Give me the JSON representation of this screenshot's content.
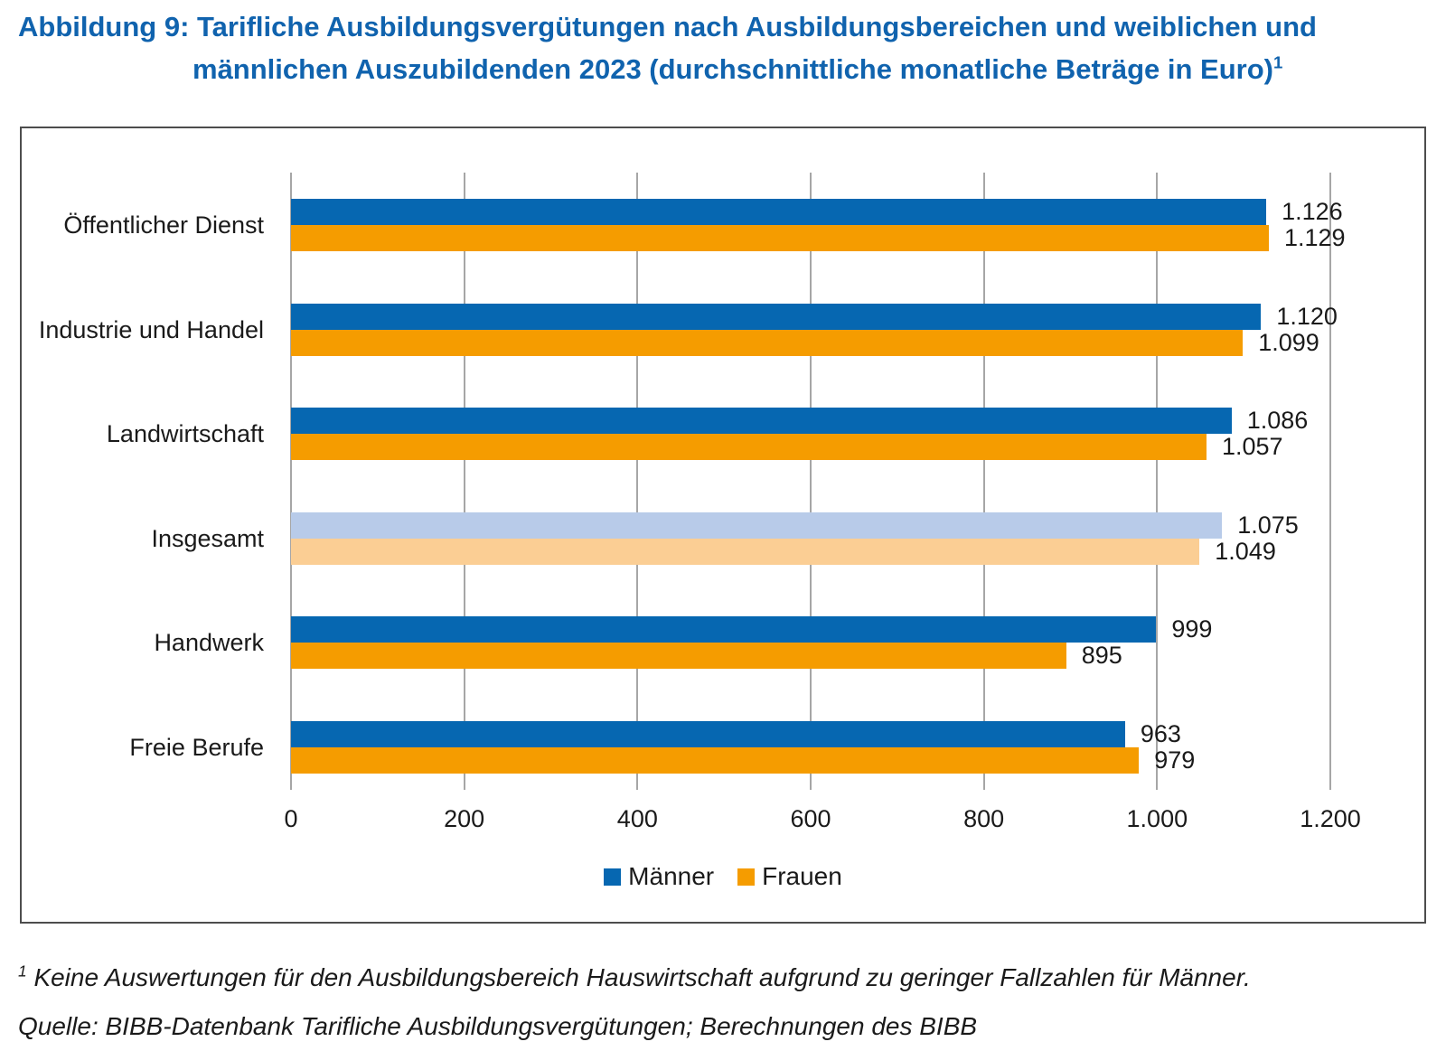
{
  "title": {
    "line1": "Abbildung 9: Tarifliche Ausbildungsvergütungen nach Ausbildungsbereichen und weiblichen und",
    "line2": "männlichen Auszubildenden 2023 (durchschnittliche monatliche Beträge in Euro)",
    "footnote_marker": "1"
  },
  "chart_data": {
    "type": "bar",
    "orientation": "horizontal",
    "categories": [
      "Öffentlicher Dienst",
      "Industrie und Handel",
      "Landwirtschaft",
      "Insgesamt",
      "Handwerk",
      "Freie Berufe"
    ],
    "series": [
      {
        "name": "Männer",
        "color": "#0667b1",
        "values": [
          1126,
          1120,
          1086,
          1075,
          999,
          963
        ],
        "display_values": [
          "1.126",
          "1.120",
          "1.086",
          "1.075",
          "999",
          "963"
        ]
      },
      {
        "name": "Frauen",
        "color": "#f59c00",
        "values": [
          1129,
          1099,
          1057,
          1049,
          895,
          979
        ],
        "display_values": [
          "1.129",
          "1.099",
          "1.057",
          "1.049",
          "895",
          "979"
        ]
      }
    ],
    "highlight_category": "Insgesamt",
    "highlight_colors": [
      "#b8cbe9",
      "#fbce94"
    ],
    "xlim": [
      0,
      1200
    ],
    "xticks": [
      0,
      200,
      400,
      600,
      800,
      1000,
      1200
    ],
    "xtick_labels": [
      "0",
      "200",
      "400",
      "600",
      "800",
      "1.000",
      "1.200"
    ],
    "grid": true,
    "value_labels": true,
    "legend_position": "bottom-center"
  },
  "footnote": {
    "marker": "1",
    "text": "Keine Auswertungen für den Ausbildungsbereich Hauswirtschaft aufgrund zu geringer Fallzahlen für Männer."
  },
  "source": "Quelle: BIBB-Datenbank Tarifliche Ausbildungsvergütungen; Berechnungen des BIBB",
  "colors": {
    "title": "#1063ae",
    "gridline": "#a6a6a6",
    "panel_border": "#4d4d4d",
    "text": "#1a1a1a"
  }
}
